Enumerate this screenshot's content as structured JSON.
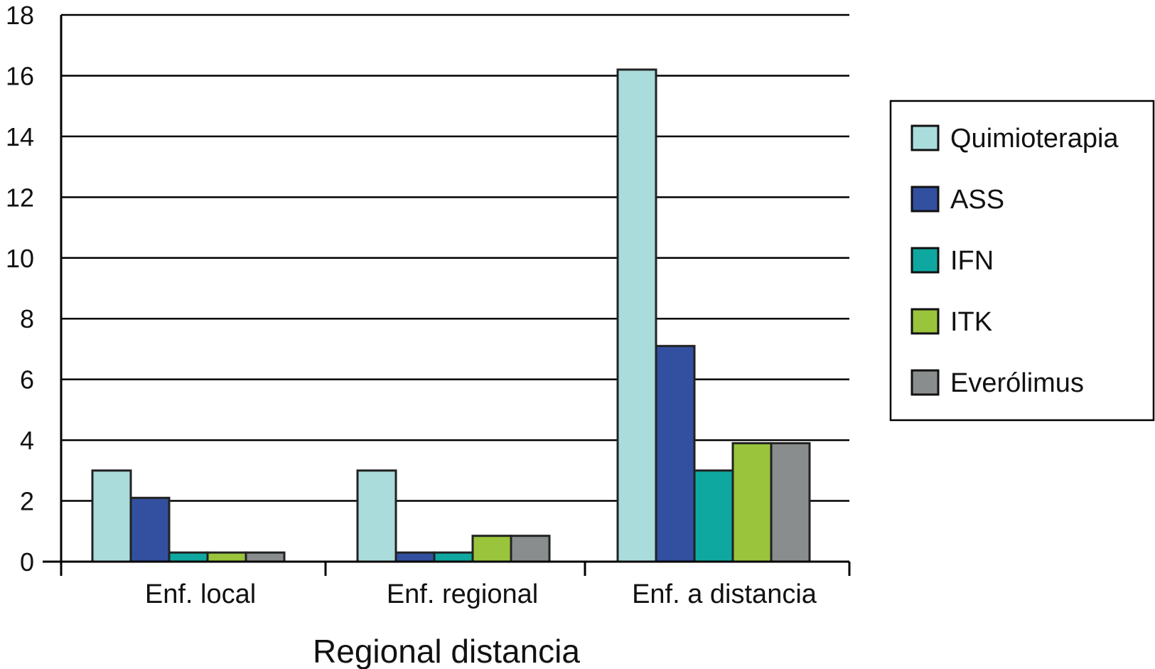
{
  "chart_data": {
    "type": "bar",
    "title": "",
    "xlabel": "Regional distancia",
    "ylabel": "",
    "categories": [
      "Enf. local",
      "Enf. regional",
      "Enf. a distancia"
    ],
    "ylim": [
      0,
      18
    ],
    "yticks": [
      "0",
      "2",
      "4",
      "6",
      "8",
      "10",
      "12",
      "14",
      "16",
      "18"
    ],
    "grid": true,
    "legend_position": "right",
    "series": [
      {
        "name": "Quimioterapia",
        "color": "#aadcdc",
        "values": [
          3.0,
          3.0,
          16.2
        ]
      },
      {
        "name": "ASS",
        "color": "#3350a0",
        "values": [
          2.1,
          0.3,
          7.1
        ]
      },
      {
        "name": "IFN",
        "color": "#0fa8a0",
        "values": [
          0.3,
          0.3,
          3.0
        ]
      },
      {
        "name": "ITK",
        "color": "#99c43c",
        "values": [
          0.3,
          0.85,
          3.9
        ]
      },
      {
        "name": "Everólimus",
        "color": "#8a8d8d",
        "values": [
          0.3,
          0.85,
          3.9
        ]
      }
    ]
  }
}
